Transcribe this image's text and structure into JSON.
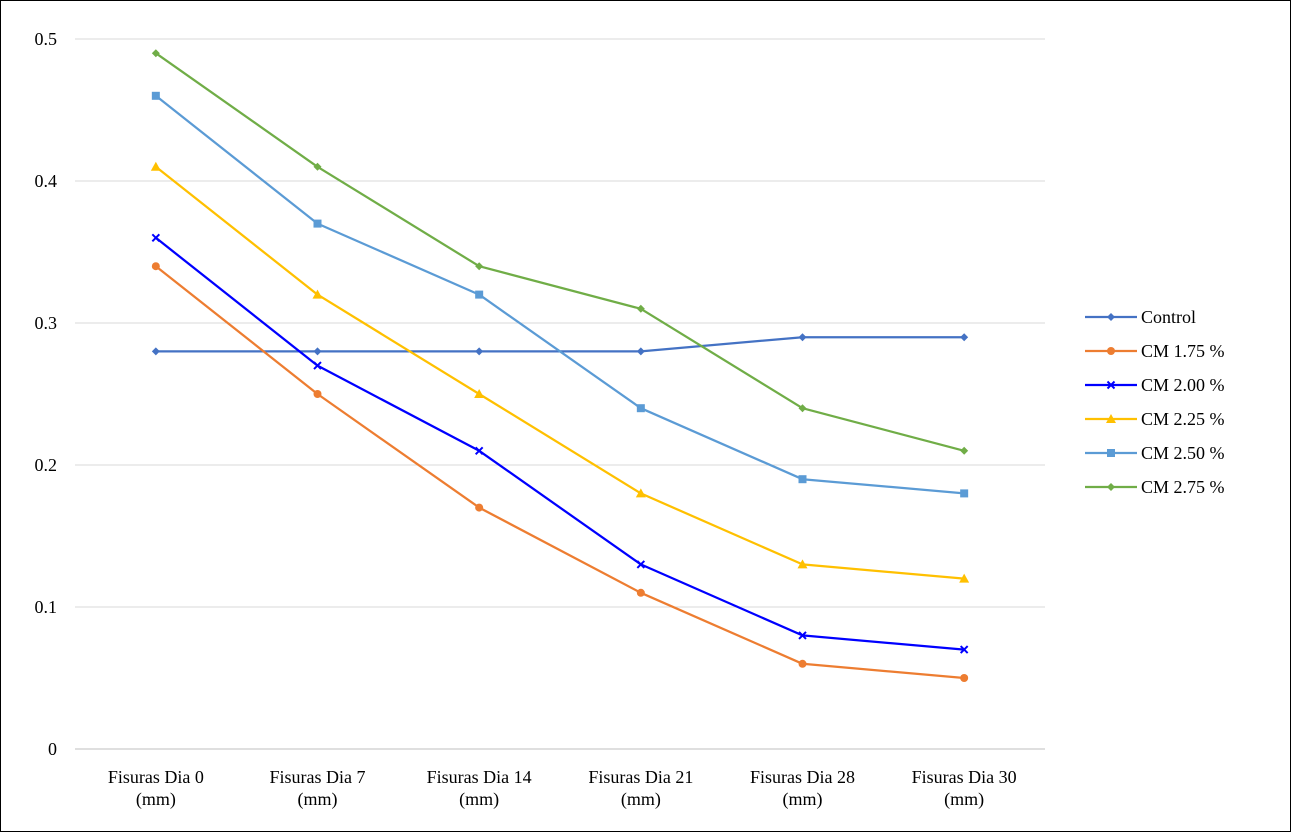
{
  "chart_data": {
    "type": "line",
    "title": "",
    "xlabel": "",
    "ylabel": "",
    "categories": [
      [
        "Fisuras Dia 0",
        "(mm)"
      ],
      [
        "Fisuras Dia 7",
        "(mm)"
      ],
      [
        "Fisuras Dia 14",
        "(mm)"
      ],
      [
        "Fisuras Dia 21",
        "(mm)"
      ],
      [
        "Fisuras Dia 28",
        "(mm)"
      ],
      [
        "Fisuras Dia 30",
        "(mm)"
      ]
    ],
    "ylim": [
      0,
      0.5
    ],
    "yticks": [
      0,
      0.1,
      0.2,
      0.3,
      0.4,
      0.5
    ],
    "grid": true,
    "legend_position": "right",
    "series": [
      {
        "name": "Control",
        "color": "#4472C4",
        "marker": "diamond",
        "values": [
          0.28,
          0.28,
          0.28,
          0.28,
          0.29,
          0.29
        ]
      },
      {
        "name": "CM 1.75 %",
        "color": "#ED7D31",
        "marker": "circle",
        "values": [
          0.34,
          0.25,
          0.17,
          0.11,
          0.06,
          0.05
        ]
      },
      {
        "name": "CM 2.00 %",
        "color": "#0000FF",
        "marker": "x",
        "values": [
          0.36,
          0.27,
          0.21,
          0.13,
          0.08,
          0.07
        ]
      },
      {
        "name": "CM 2.25 %",
        "color": "#FFC000",
        "marker": "triangle",
        "values": [
          0.41,
          0.32,
          0.25,
          0.18,
          0.13,
          0.12
        ]
      },
      {
        "name": "CM 2.50 %",
        "color": "#5B9BD5",
        "marker": "square",
        "values": [
          0.46,
          0.37,
          0.32,
          0.24,
          0.19,
          0.18
        ]
      },
      {
        "name": "CM 2.75 %",
        "color": "#70AD47",
        "marker": "diamond",
        "values": [
          0.49,
          0.41,
          0.34,
          0.31,
          0.24,
          0.21
        ]
      }
    ]
  }
}
